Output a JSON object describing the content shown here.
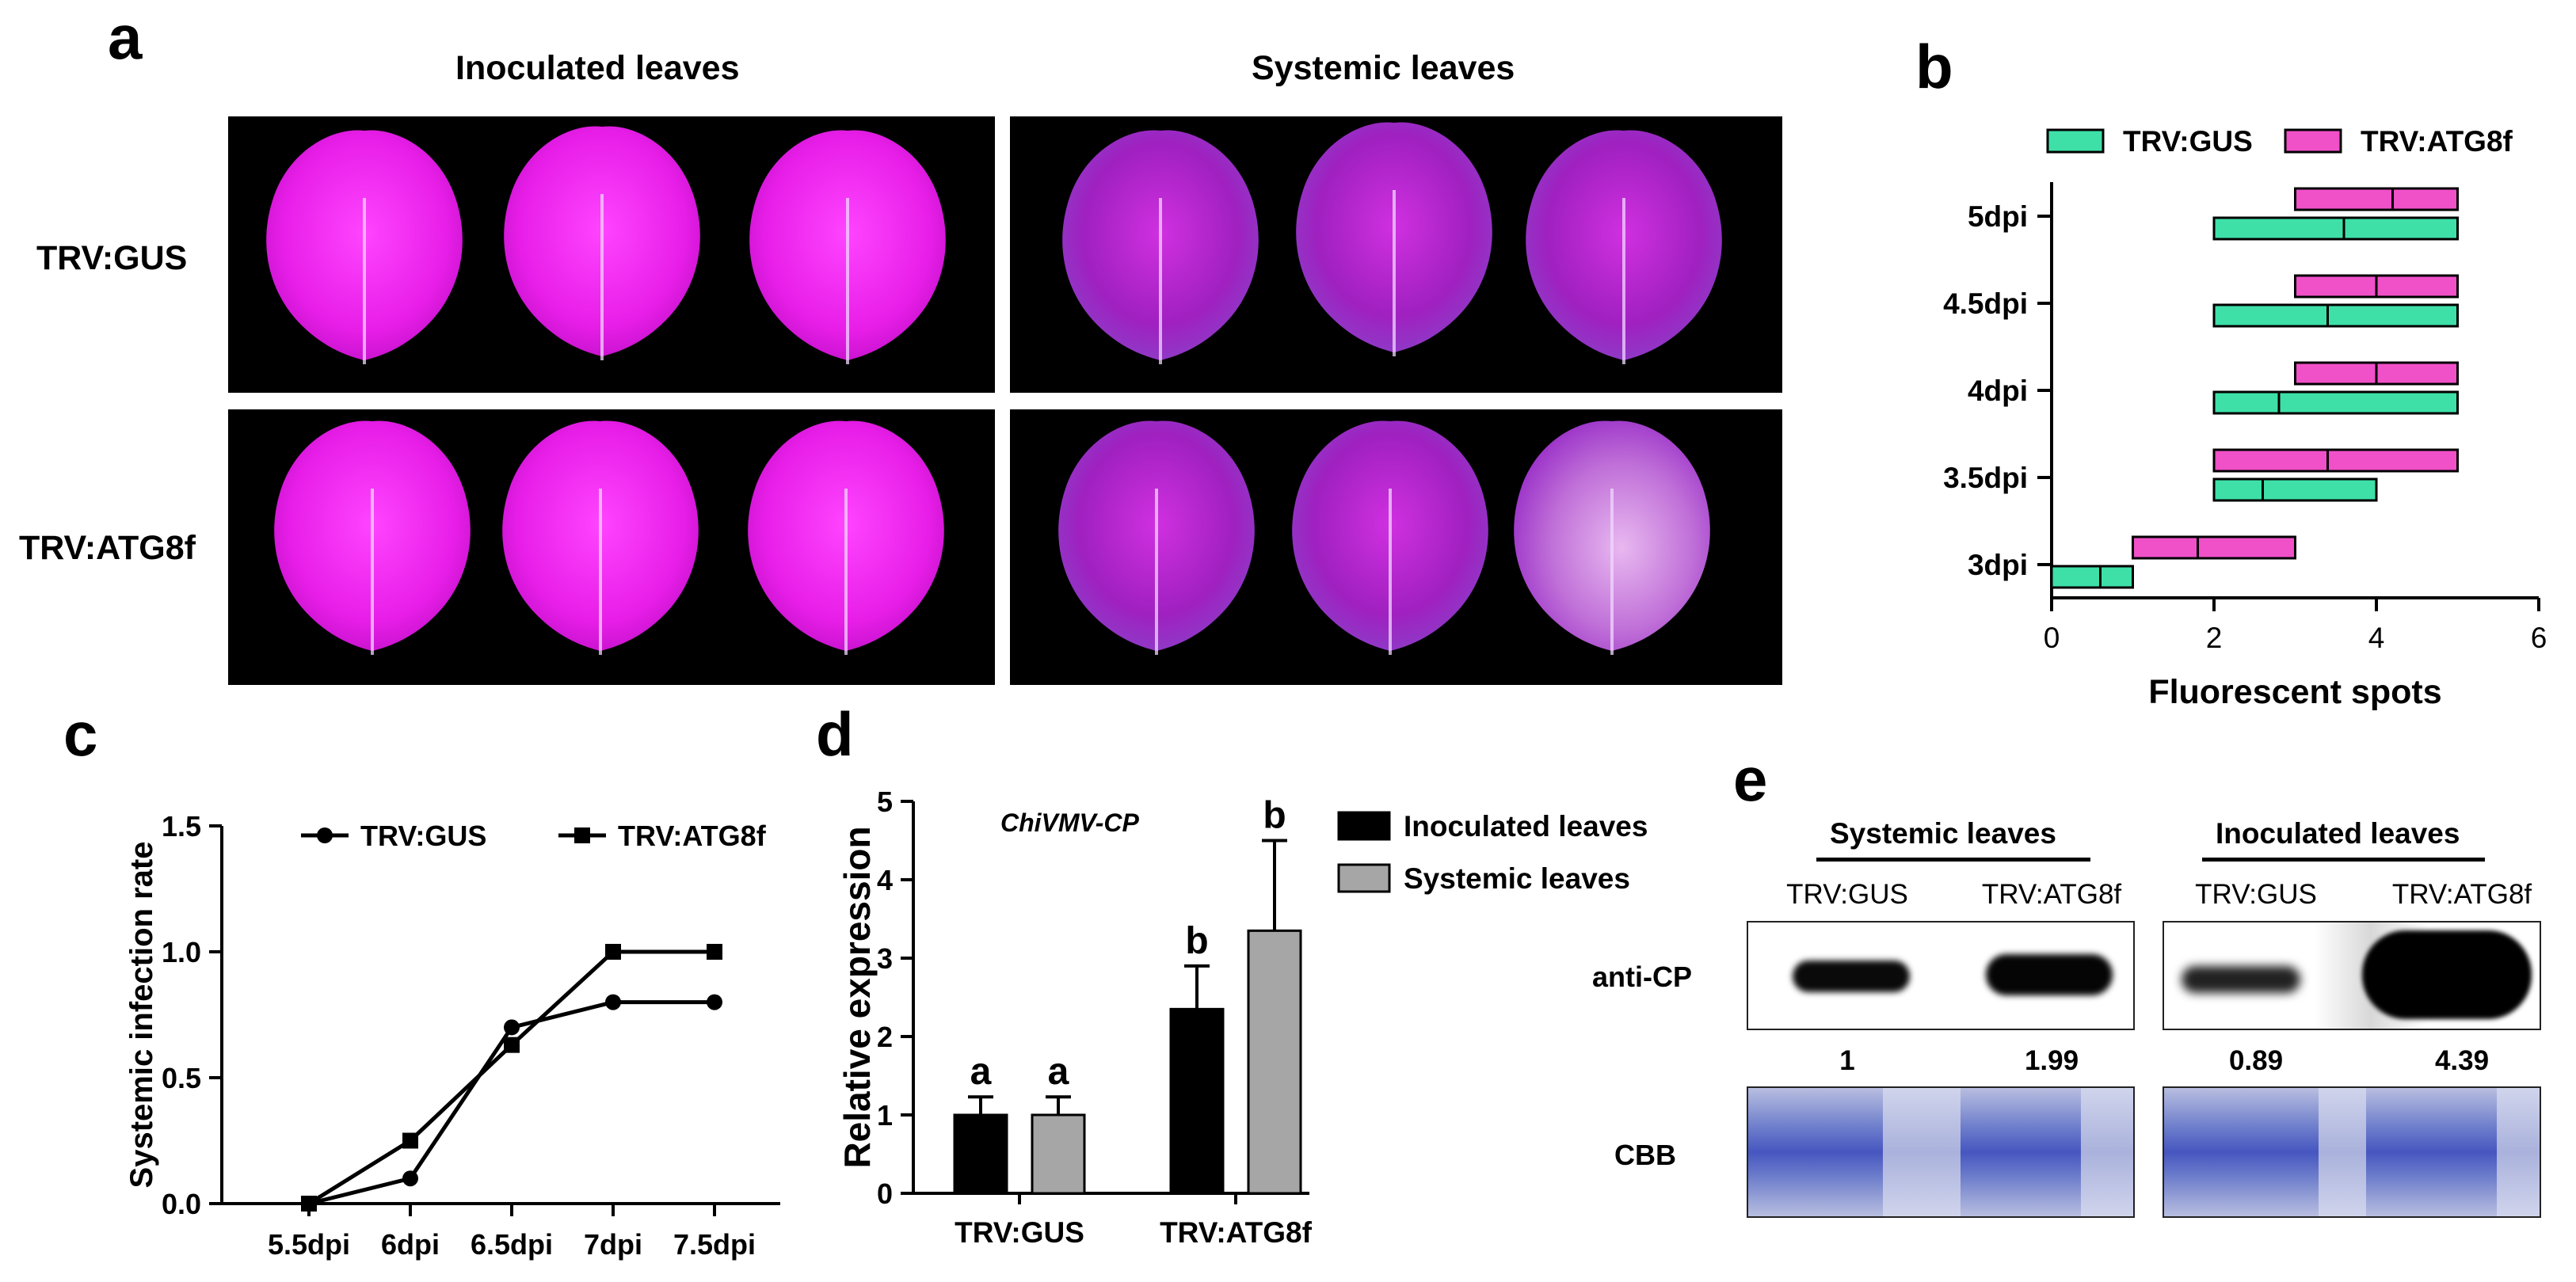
{
  "panel_labels": {
    "a": "a",
    "b": "b",
    "c": "c",
    "d": "d",
    "e": "e"
  },
  "panel_a": {
    "col_headers": [
      "Inoculated leaves",
      "Systemic leaves"
    ],
    "row_labels": [
      "TRV:GUS",
      "TRV:ATG8f"
    ]
  },
  "chart_data": [
    {
      "panel": "b",
      "type": "bar",
      "orientation": "horizontal floating range",
      "categories": [
        "3dpi",
        "3.5dpi",
        "4dpi",
        "4.5dpi",
        "5dpi"
      ],
      "series": [
        {
          "name": "TRV:GUS",
          "color": "#3ee0a8",
          "ranges": [
            [
              0,
              1
            ],
            [
              2,
              4
            ],
            [
              2,
              5
            ],
            [
              2,
              5
            ],
            [
              2,
              5
            ]
          ],
          "medians": [
            0.6,
            2.6,
            2.8,
            3.4,
            3.6
          ]
        },
        {
          "name": "TRV:ATG8f",
          "color": "#f050c8",
          "ranges": [
            [
              1,
              3
            ],
            [
              2,
              5
            ],
            [
              3,
              5
            ],
            [
              3,
              5
            ],
            [
              3,
              5
            ]
          ],
          "medians": [
            1.8,
            3.4,
            4.0,
            4.0,
            4.2
          ]
        }
      ],
      "xlabel": "Fluorescent spots",
      "xlim": [
        0,
        6
      ],
      "xticks": [
        "0",
        "2",
        "4",
        "6"
      ],
      "legend": "top"
    },
    {
      "panel": "c",
      "type": "line",
      "x": [
        "5.5dpi",
        "6dpi",
        "6.5dpi",
        "7dpi",
        "7.5dpi"
      ],
      "series": [
        {
          "name": "TRV:GUS",
          "marker": "circle",
          "values": [
            0,
            0.1,
            0.7,
            0.8,
            0.8
          ]
        },
        {
          "name": "TRV:ATG8f",
          "marker": "square",
          "values": [
            0,
            0.25,
            0.63,
            1.0,
            1.0
          ]
        }
      ],
      "ylabel": "Systemic infection rate",
      "ylim": [
        0,
        1.5
      ],
      "yticks": [
        "0.0",
        "0.5",
        "1.0",
        "1.5"
      ],
      "legend": "top"
    },
    {
      "panel": "d",
      "type": "bar",
      "title": "ChiVMV-CP",
      "categories": [
        "TRV:GUS",
        "TRV:ATG8f"
      ],
      "series": [
        {
          "name": "Inoculated leaves",
          "color": "#000000",
          "values": [
            1.0,
            2.35
          ],
          "errors": [
            0.23,
            0.55
          ],
          "letters": [
            "a",
            "b"
          ]
        },
        {
          "name": "Systemic leaves",
          "color": "#a6a6a6",
          "values": [
            1.0,
            3.35
          ],
          "errors": [
            0.23,
            1.15
          ],
          "letters": [
            "a",
            "b"
          ]
        }
      ],
      "ylabel": "Relative expression",
      "ylim": [
        0,
        5
      ],
      "yticks": [
        "0",
        "1",
        "2",
        "3",
        "4",
        "5"
      ],
      "legend": "right"
    }
  ],
  "panel_e": {
    "groups": [
      {
        "title": "Systemic leaves",
        "lanes": [
          "TRV:GUS",
          "TRV:ATG8f"
        ],
        "quant": [
          "1",
          "1.99"
        ]
      },
      {
        "title": "Inoculated leaves",
        "lanes": [
          "TRV:GUS",
          "TRV:ATG8f"
        ],
        "quant": [
          "0.89",
          "4.39"
        ]
      }
    ],
    "row_labels": [
      "anti-CP",
      "CBB"
    ]
  }
}
